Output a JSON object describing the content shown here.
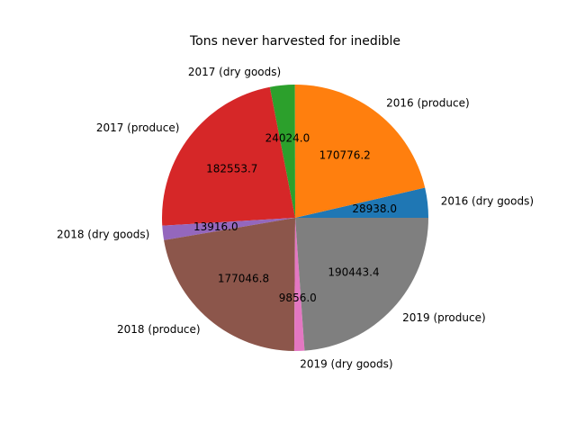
{
  "chart_data": {
    "type": "pie",
    "title": "Tons never harvested for inedible",
    "slices": [
      {
        "label": "2016 (dry goods)",
        "value": 28938.0,
        "value_label": "28938.0",
        "color": "#1f77b4"
      },
      {
        "label": "2016 (produce)",
        "value": 170776.2,
        "value_label": "170776.2",
        "color": "#ff7f0e"
      },
      {
        "label": "2017 (dry goods)",
        "value": 24024.0,
        "value_label": "24024.0",
        "color": "#2ca02c"
      },
      {
        "label": "2017 (produce)",
        "value": 182553.7,
        "value_label": "182553.7",
        "color": "#d62728"
      },
      {
        "label": "2018 (dry goods)",
        "value": 13916.0,
        "value_label": "13916.0",
        "color": "#9467bd"
      },
      {
        "label": "2018 (produce)",
        "value": 177046.8,
        "value_label": "177046.8",
        "color": "#8c564b"
      },
      {
        "label": "2019 (dry goods)",
        "value": 9856.0,
        "value_label": "9856.0",
        "color": "#e377c2"
      },
      {
        "label": "2019 (produce)",
        "value": 190443.4,
        "value_label": "190443.4",
        "color": "#7f7f7f"
      }
    ]
  }
}
